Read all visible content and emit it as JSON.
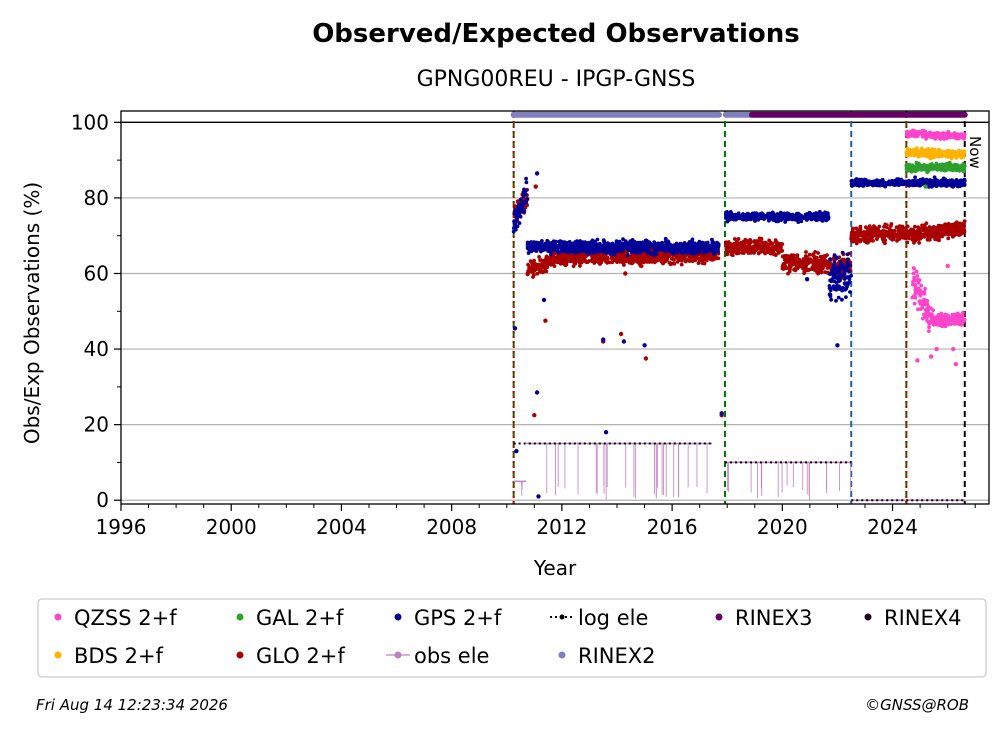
{
  "chart_data": {
    "type": "scatter",
    "title": "Observed/Expected Observations",
    "subtitle": "GPNG00REU - IPGP-GNSS",
    "xlabel": "Year",
    "ylabel": "Obs/Exp Observations (%)",
    "xlim": [
      1996,
      2027.5
    ],
    "ylim": [
      -1,
      103
    ],
    "xticks": [
      1996,
      2000,
      2004,
      2008,
      2012,
      2016,
      2020,
      2024
    ],
    "yticks": [
      0,
      20,
      40,
      60,
      80,
      100
    ],
    "grid": "horizontal",
    "now_label": "Now",
    "now_x": 2026.62,
    "vlines": [
      {
        "x": 2010.25,
        "color": "#007700",
        "style": "dashed"
      },
      {
        "x": 2010.25,
        "color": "#cc0000",
        "style": "dotted"
      },
      {
        "x": 2017.92,
        "color": "#007700",
        "style": "dashed"
      },
      {
        "x": 2022.5,
        "color": "#1f5fa8",
        "style": "dashed"
      },
      {
        "x": 2024.5,
        "color": "#007700",
        "style": "dashed"
      },
      {
        "x": 2024.5,
        "color": "#cc0000",
        "style": "dotted"
      },
      {
        "x": 2026.62,
        "color": "#000000",
        "style": "dashed"
      }
    ],
    "rinex_bars": [
      {
        "name": "RINEX2",
        "color": "#8080c0",
        "x0": 2010.25,
        "x1": 2017.7,
        "y": 102
      },
      {
        "name": "RINEX2",
        "color": "#8080c0",
        "x0": 2017.95,
        "x1": 2018.9,
        "y": 102
      },
      {
        "name": "RINEX3",
        "color": "#660066",
        "x0": 2018.9,
        "x1": 2026.62,
        "y": 102
      }
    ],
    "log_ele": [
      {
        "x0": 2010.25,
        "x1": 2010.8,
        "y": 15
      },
      {
        "x0": 2010.8,
        "x1": 2017.45,
        "y": 15
      },
      {
        "x0": 2017.92,
        "x1": 2022.5,
        "y": 10
      },
      {
        "x0": 2022.5,
        "x1": 2026.62,
        "y": 0
      }
    ],
    "obs_ele": [
      {
        "x0": 2010.25,
        "x1": 2010.7,
        "y": 5
      },
      {
        "x0": 2010.7,
        "x1": 2017.45,
        "y": 15
      },
      {
        "x0": 2017.95,
        "x1": 2022.5,
        "y": 10
      },
      {
        "x0": 2022.5,
        "x1": 2026.62,
        "y": 0
      }
    ],
    "series": [
      {
        "name": "GPS 2+f",
        "color": "#000099",
        "segments": [
          {
            "x0": 2010.25,
            "x1": 2010.75,
            "y0": 72,
            "y1": 82,
            "spread": 5
          },
          {
            "x0": 2010.75,
            "x1": 2017.7,
            "y0": 67,
            "y1": 67,
            "spread": 2.5
          },
          {
            "x0": 2017.95,
            "x1": 2021.7,
            "y0": 75,
            "y1": 75,
            "spread": 1.5
          },
          {
            "x0": 2021.7,
            "x1": 2022.5,
            "y0": 58,
            "y1": 60,
            "spread": 9
          },
          {
            "x0": 2022.5,
            "x1": 2024.5,
            "y0": 84,
            "y1": 84,
            "spread": 1.2
          },
          {
            "x0": 2024.5,
            "x1": 2026.62,
            "y0": 84,
            "y1": 84,
            "spread": 1.5
          }
        ],
        "outliers": [
          [
            2010.3,
            45.5
          ],
          [
            2010.35,
            13
          ],
          [
            2011.1,
            86.5
          ],
          [
            2011.1,
            28.5
          ],
          [
            2011.15,
            1
          ],
          [
            2011.35,
            53
          ],
          [
            2013.5,
            42.5
          ],
          [
            2013.6,
            18
          ],
          [
            2014.25,
            42
          ],
          [
            2015.0,
            41
          ],
          [
            2017.8,
            23
          ],
          [
            2022.0,
            41
          ],
          [
            2020.9,
            58.5
          ]
        ]
      },
      {
        "name": "GLO 2+f",
        "color": "#aa0000",
        "segments": [
          {
            "x0": 2010.25,
            "x1": 2010.75,
            "y0": 75,
            "y1": 80,
            "spread": 4
          },
          {
            "x0": 2010.75,
            "x1": 2011.6,
            "y0": 61,
            "y1": 63,
            "spread": 3
          },
          {
            "x0": 2011.6,
            "x1": 2017.7,
            "y0": 64,
            "y1": 65,
            "spread": 3
          },
          {
            "x0": 2017.95,
            "x1": 2020.0,
            "y0": 67,
            "y1": 67,
            "spread": 3
          },
          {
            "x0": 2020.0,
            "x1": 2022.5,
            "y0": 63,
            "y1": 62,
            "spread": 4
          },
          {
            "x0": 2022.5,
            "x1": 2024.5,
            "y0": 70,
            "y1": 71,
            "spread": 3
          },
          {
            "x0": 2024.5,
            "x1": 2026.62,
            "y0": 70,
            "y1": 72,
            "spread": 3
          }
        ],
        "outliers": [
          [
            2011.0,
            22.5
          ],
          [
            2011.05,
            83
          ],
          [
            2011.4,
            47.5
          ],
          [
            2013.5,
            42
          ],
          [
            2014.15,
            44
          ],
          [
            2014.3,
            60
          ],
          [
            2015.05,
            37.5
          ],
          [
            2017.8,
            22.5
          ]
        ]
      },
      {
        "name": "GAL 2+f",
        "color": "#2ca02c",
        "segments": [
          {
            "x0": 2024.5,
            "x1": 2026.62,
            "y0": 88,
            "y1": 88,
            "spread": 1.5
          }
        ],
        "outliers": [
          [
            2025.2,
            83
          ]
        ]
      },
      {
        "name": "BDS 2+f",
        "color": "#ffb300",
        "segments": [
          {
            "x0": 2024.5,
            "x1": 2026.62,
            "y0": 92,
            "y1": 91.5,
            "spread": 1.5
          }
        ],
        "outliers": []
      },
      {
        "name": "QZSS 2+f",
        "color": "#ff44cc",
        "segments": [
          {
            "x0": 2024.5,
            "x1": 2025.2,
            "y0": 97,
            "y1": 97,
            "spread": 1.2
          },
          {
            "x0": 2025.2,
            "x1": 2026.62,
            "y0": 96.5,
            "y1": 96.5,
            "spread": 1.2
          },
          {
            "x0": 2024.7,
            "x1": 2025.4,
            "y0": 58,
            "y1": 48,
            "spread": 7
          },
          {
            "x0": 2025.4,
            "x1": 2026.62,
            "y0": 48,
            "y1": 48,
            "spread": 2.5
          }
        ],
        "outliers": [
          [
            2024.9,
            37
          ],
          [
            2025.4,
            38
          ],
          [
            2026.3,
            36
          ],
          [
            2026.2,
            40
          ],
          [
            2025.6,
            40
          ],
          [
            2026.0,
            62
          ]
        ]
      }
    ],
    "legend": {
      "placement": "below",
      "columns": [
        [
          "QZSS 2+f",
          "BDS 2+f"
        ],
        [
          "GAL 2+f",
          "GLO 2+f"
        ],
        [
          "GPS 2+f",
          "obs ele"
        ],
        [
          "log ele",
          "RINEX2"
        ],
        [
          "RINEX3"
        ],
        [
          "RINEX4"
        ]
      ],
      "entries": [
        {
          "label": "QZSS 2+f",
          "color": "#ff44cc",
          "marker": "dot"
        },
        {
          "label": "BDS 2+f",
          "color": "#ffb300",
          "marker": "dot"
        },
        {
          "label": "GAL 2+f",
          "color": "#2ca02c",
          "marker": "dot"
        },
        {
          "label": "GLO 2+f",
          "color": "#aa0000",
          "marker": "dot"
        },
        {
          "label": "GPS 2+f",
          "color": "#000099",
          "marker": "dot"
        },
        {
          "label": "obs ele",
          "color": "#c080c0",
          "marker": "line-dot"
        },
        {
          "label": "log ele",
          "color": "#000000",
          "marker": "dotted-line"
        },
        {
          "label": "RINEX2",
          "color": "#8080c0",
          "marker": "dot"
        },
        {
          "label": "RINEX3",
          "color": "#660066",
          "marker": "dot"
        },
        {
          "label": "RINEX4",
          "color": "#220022",
          "marker": "dot"
        }
      ]
    }
  },
  "footer": {
    "timestamp": "Fri Aug 14 12:23:34 2026",
    "credit": "©GNSS@ROB"
  }
}
